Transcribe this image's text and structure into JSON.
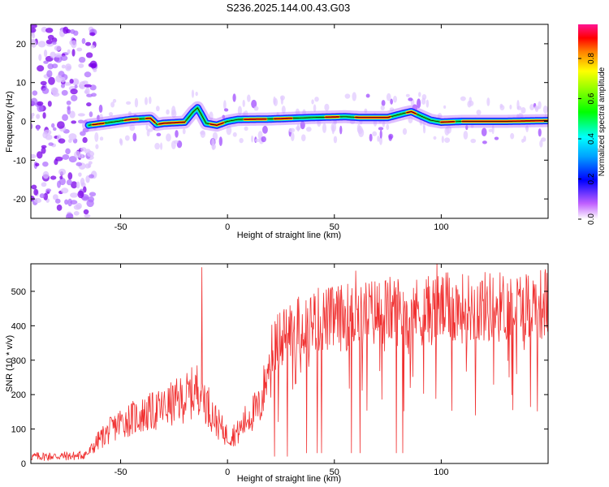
{
  "title": "S236.2025.144.00.43.G03",
  "colorbar": {
    "label": "Normalized spectral amplitude",
    "ticks": [
      "0.0",
      "0.2",
      "0.4",
      "0.6",
      "0.8"
    ],
    "tick_values": [
      0.0,
      0.2,
      0.4,
      0.6,
      0.8
    ],
    "range": [
      0.0,
      0.97
    ],
    "colormap": [
      "#ffffff",
      "#a020f0",
      "#0000ff",
      "#00ffff",
      "#00ff00",
      "#ffff00",
      "#ff8000",
      "#ff0000",
      "#ff1493"
    ]
  },
  "chart_data": [
    {
      "type": "heatmap",
      "xlabel": "Height of straight line (km)",
      "ylabel": "Frequency (Hz)",
      "xlim": [
        -92,
        150
      ],
      "ylim": [
        -25,
        25
      ],
      "xticks": [
        -50,
        0,
        50,
        100
      ],
      "xtick_labels": [
        "-50",
        "0",
        "50",
        "100"
      ],
      "yticks": [
        -20,
        -10,
        0,
        10,
        20
      ],
      "ytick_labels": [
        "-20",
        "-10",
        "0",
        "10",
        "20"
      ],
      "ridge": {
        "x": [
          -65,
          -58,
          -45,
          -36,
          -33,
          -30,
          -20,
          -16,
          -14,
          -10,
          -5,
          0,
          5,
          20,
          40,
          55,
          62,
          75,
          82,
          86,
          90,
          95,
          100,
          110,
          130,
          150
        ],
        "freq": [
          -1,
          -0.5,
          0.5,
          0.8,
          -0.8,
          -0.5,
          -0.2,
          2.5,
          3.5,
          -0.5,
          -1,
          0,
          0.5,
          0.6,
          1.0,
          1.2,
          1.0,
          1.0,
          2.0,
          2.5,
          1.5,
          0.3,
          -0.2,
          0,
          0,
          0.2
        ]
      },
      "noise_region_x": [
        -92,
        -62
      ]
    },
    {
      "type": "line",
      "xlabel": "Height of straight line (km)",
      "ylabel": "SNR (10 * v/v)",
      "xlim": [
        -92,
        150
      ],
      "ylim": [
        0,
        580
      ],
      "xticks": [
        -50,
        0,
        50,
        100
      ],
      "xtick_labels": [
        "-50",
        "0",
        "50",
        "100"
      ],
      "yticks": [
        0,
        100,
        200,
        300,
        400,
        500
      ],
      "ytick_labels": [
        "0",
        "100",
        "200",
        "300",
        "400",
        "500"
      ],
      "color": "#f03030",
      "trend": {
        "x": [
          -92,
          -70,
          -65,
          -60,
          -50,
          -40,
          -30,
          -20,
          -15,
          -13,
          -10,
          -5,
          0,
          5,
          10,
          15,
          18,
          20,
          25,
          30,
          35,
          40,
          50,
          60,
          70,
          80,
          90,
          100,
          110,
          120,
          130,
          140,
          150
        ],
        "y": [
          20,
          22,
          30,
          70,
          120,
          140,
          160,
          190,
          210,
          230,
          180,
          120,
          80,
          90,
          140,
          160,
          240,
          320,
          370,
          390,
          405,
          415,
          420,
          430,
          440,
          445,
          440,
          450,
          450,
          455,
          455,
          460,
          465
        ]
      },
      "spikes": [
        {
          "x": -12,
          "y": 570
        },
        {
          "x": 60,
          "y": 560
        },
        {
          "x": 87,
          "y": 510
        },
        {
          "x": 98,
          "y": 590
        }
      ],
      "dips": [
        {
          "x": 22,
          "y": 20
        },
        {
          "x": 28,
          "y": 20
        },
        {
          "x": 37,
          "y": 30
        },
        {
          "x": 42,
          "y": 30
        },
        {
          "x": 44,
          "y": 30
        },
        {
          "x": 58,
          "y": 30
        },
        {
          "x": 62,
          "y": 30
        },
        {
          "x": 79,
          "y": 30
        },
        {
          "x": 82,
          "y": 30
        }
      ],
      "sample_step": 0.25
    }
  ]
}
